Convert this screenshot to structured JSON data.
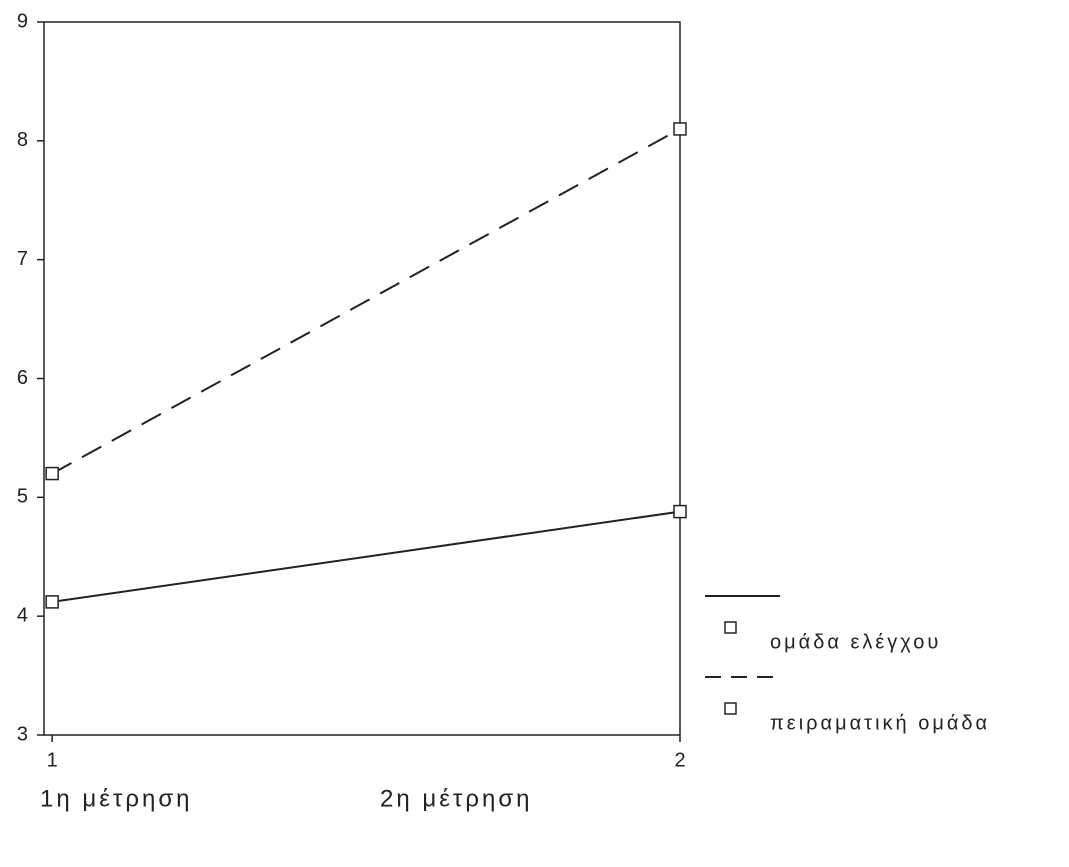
{
  "chart_data": {
    "type": "line",
    "x": [
      1,
      2
    ],
    "series": [
      {
        "name": "ομάδα ελέγχου",
        "color": "#222222",
        "dash": "solid",
        "values": [
          4.12,
          4.88
        ]
      },
      {
        "name": "πειραματική ομάδα",
        "color": "#222222",
        "dash": "dashed",
        "values": [
          5.2,
          8.1
        ]
      }
    ],
    "xlim": [
      0.987,
      2
    ],
    "xticks": [
      1,
      2
    ],
    "ylim": [
      3,
      9
    ],
    "yticks": [
      3,
      4,
      5,
      6,
      7,
      8,
      9
    ],
    "annotations": [
      "1η μέτρηση",
      "2η μέτρηση"
    ]
  }
}
